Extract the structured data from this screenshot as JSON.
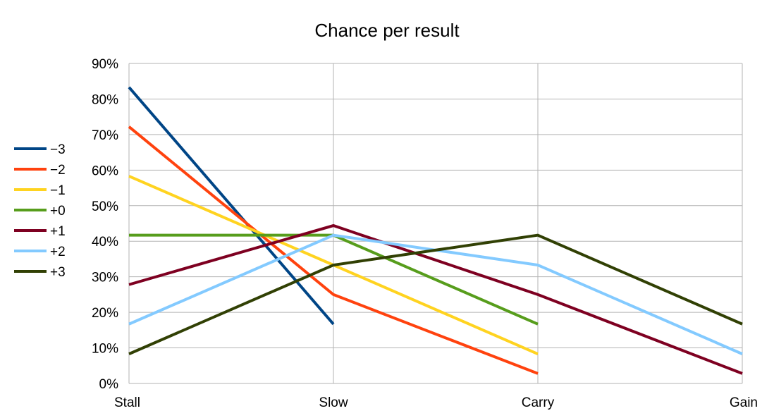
{
  "chart_data": {
    "type": "line",
    "title": "Chance per result",
    "xlabel": "",
    "ylabel": "",
    "categories": [
      "Stall",
      "Slow",
      "Carry",
      "Gain"
    ],
    "ylim": [
      0,
      0.9
    ],
    "y_tick_labels": [
      "0%",
      "10%",
      "20%",
      "30%",
      "40%",
      "50%",
      "60%",
      "70%",
      "80%",
      "90%"
    ],
    "grid": true,
    "legend_position": "left",
    "series": [
      {
        "name": "−3",
        "color": "#004586",
        "values": [
          0.833,
          0.167,
          null,
          null
        ]
      },
      {
        "name": "−2",
        "color": "#ff420e",
        "values": [
          0.722,
          0.25,
          0.028,
          null
        ]
      },
      {
        "name": "−1",
        "color": "#ffd320",
        "values": [
          0.583,
          0.333,
          0.083,
          null
        ]
      },
      {
        "name": "+0",
        "color": "#579d1c",
        "values": [
          0.417,
          0.417,
          0.167,
          null
        ]
      },
      {
        "name": "+1",
        "color": "#7e0021",
        "values": [
          0.278,
          0.444,
          0.25,
          0.028
        ]
      },
      {
        "name": "+2",
        "color": "#83caff",
        "values": [
          0.167,
          0.417,
          0.333,
          0.083
        ]
      },
      {
        "name": "+3",
        "color": "#314004",
        "values": [
          0.083,
          0.333,
          0.417,
          0.167
        ]
      }
    ]
  }
}
